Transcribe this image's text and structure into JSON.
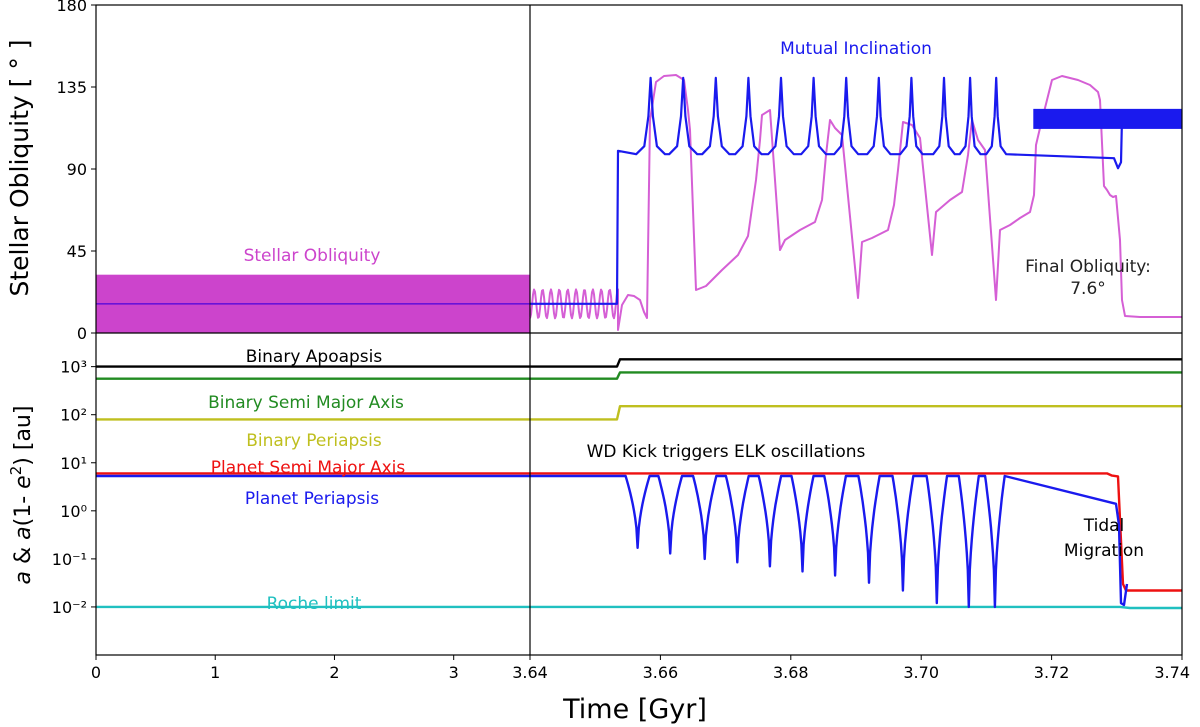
{
  "chart_data": {
    "type": "line",
    "xlabel": "Time [Gyr]",
    "colors": {
      "magenta": "#cc44cc",
      "blue": "#1a1aee",
      "black": "#000000",
      "green": "#228b22",
      "olive": "#bfbf1f",
      "red": "#ee1111",
      "cyan": "#20c0c0"
    },
    "panels": {
      "left_x": {
        "range": [
          0,
          3.64
        ],
        "ticks": [
          0,
          1,
          2,
          3
        ],
        "tick_labels": [
          "0",
          "1",
          "2",
          "3"
        ]
      },
      "right_x": {
        "range": [
          3.64,
          3.74
        ],
        "ticks": [
          3.64,
          3.66,
          3.68,
          3.7,
          3.72,
          3.74
        ],
        "tick_labels": [
          "3.64",
          "3.66",
          "3.68",
          "3.70",
          "3.72",
          "3.74"
        ]
      },
      "top": {
        "ylabel": "Stellar Obliquity [ ° ]",
        "ylim": [
          0,
          180
        ],
        "yticks": [
          0,
          45,
          90,
          135,
          180
        ],
        "ytick_labels": [
          "0",
          "45",
          "90",
          "135",
          "180"
        ],
        "annotations": {
          "stellar_obliquity": "Stellar Obliquity",
          "mutual_inclination": "Mutual Inclination",
          "final_obliquity_line1": "Final Obliquity:",
          "final_obliquity_line2": "7.6°"
        },
        "stellar_obliquity_band": {
          "x": [
            0,
            3.64
          ],
          "y_range": [
            0,
            32
          ]
        },
        "mutual_inclination_initial": 16,
        "mutual_inclination_jump": {
          "x": 3.6535,
          "from": 16,
          "to": 100
        },
        "mutual_inclination_peaks": [
          3.6585,
          3.6635,
          3.6685,
          3.6735,
          3.6785,
          3.6835,
          3.6885,
          3.6935,
          3.6985,
          3.7035,
          3.7075,
          3.7115
        ],
        "mutual_inclination_peak_value": 140,
        "mutual_inclination_base": 97,
        "mutual_inclination_final_band": {
          "x": [
            3.7175,
            3.74
          ],
          "y_range": [
            112,
            123
          ]
        },
        "obliquity_dips": [
          3.6575,
          3.6655,
          3.68,
          3.688,
          3.6955,
          3.7012,
          3.7065,
          3.7105,
          3.7138
        ],
        "final_obliquity": 7.6
      },
      "bottom": {
        "ylabel": "a & a(1- e²) [au]",
        "scale": "log",
        "ylim_log10": [
          -3,
          3.7
        ],
        "yticks": [
          "10⁻²",
          "10⁻¹",
          "10⁰",
          "10¹",
          "10²",
          "10³"
        ],
        "annotations": {
          "binary_apoapsis": "Binary Apoapsis",
          "binary_sma": "Binary Semi Major Axis",
          "binary_periapsis": "Binary Periapsis",
          "planet_sma": "Planet Semi Major Axis",
          "planet_periapsis": "Planet Periapsis",
          "roche": "Roche limit",
          "wd_kick": "WD Kick triggers ELK oscillations",
          "tidal_line1": "Tidal",
          "tidal_line2": "Migration"
        },
        "series": [
          {
            "name": "Binary Apoapsis",
            "before": 1000,
            "after": 1420
          },
          {
            "name": "Binary Semi Major Axis",
            "before": 560,
            "after": 760
          },
          {
            "name": "Binary Periapsis",
            "before": 80,
            "after": 150
          },
          {
            "name": "Planet Semi Major Axis",
            "before": 6,
            "after_migration": 0.022
          },
          {
            "name": "Planet Periapsis",
            "before": 5.3,
            "min_values": [
              0.17,
              0.13,
              0.1,
              0.085,
              0.07,
              0.055,
              0.045,
              0.032,
              0.022,
              0.012,
              0.01,
              0.01
            ]
          },
          {
            "name": "Roche limit",
            "value": 0.01
          }
        ]
      }
    }
  }
}
